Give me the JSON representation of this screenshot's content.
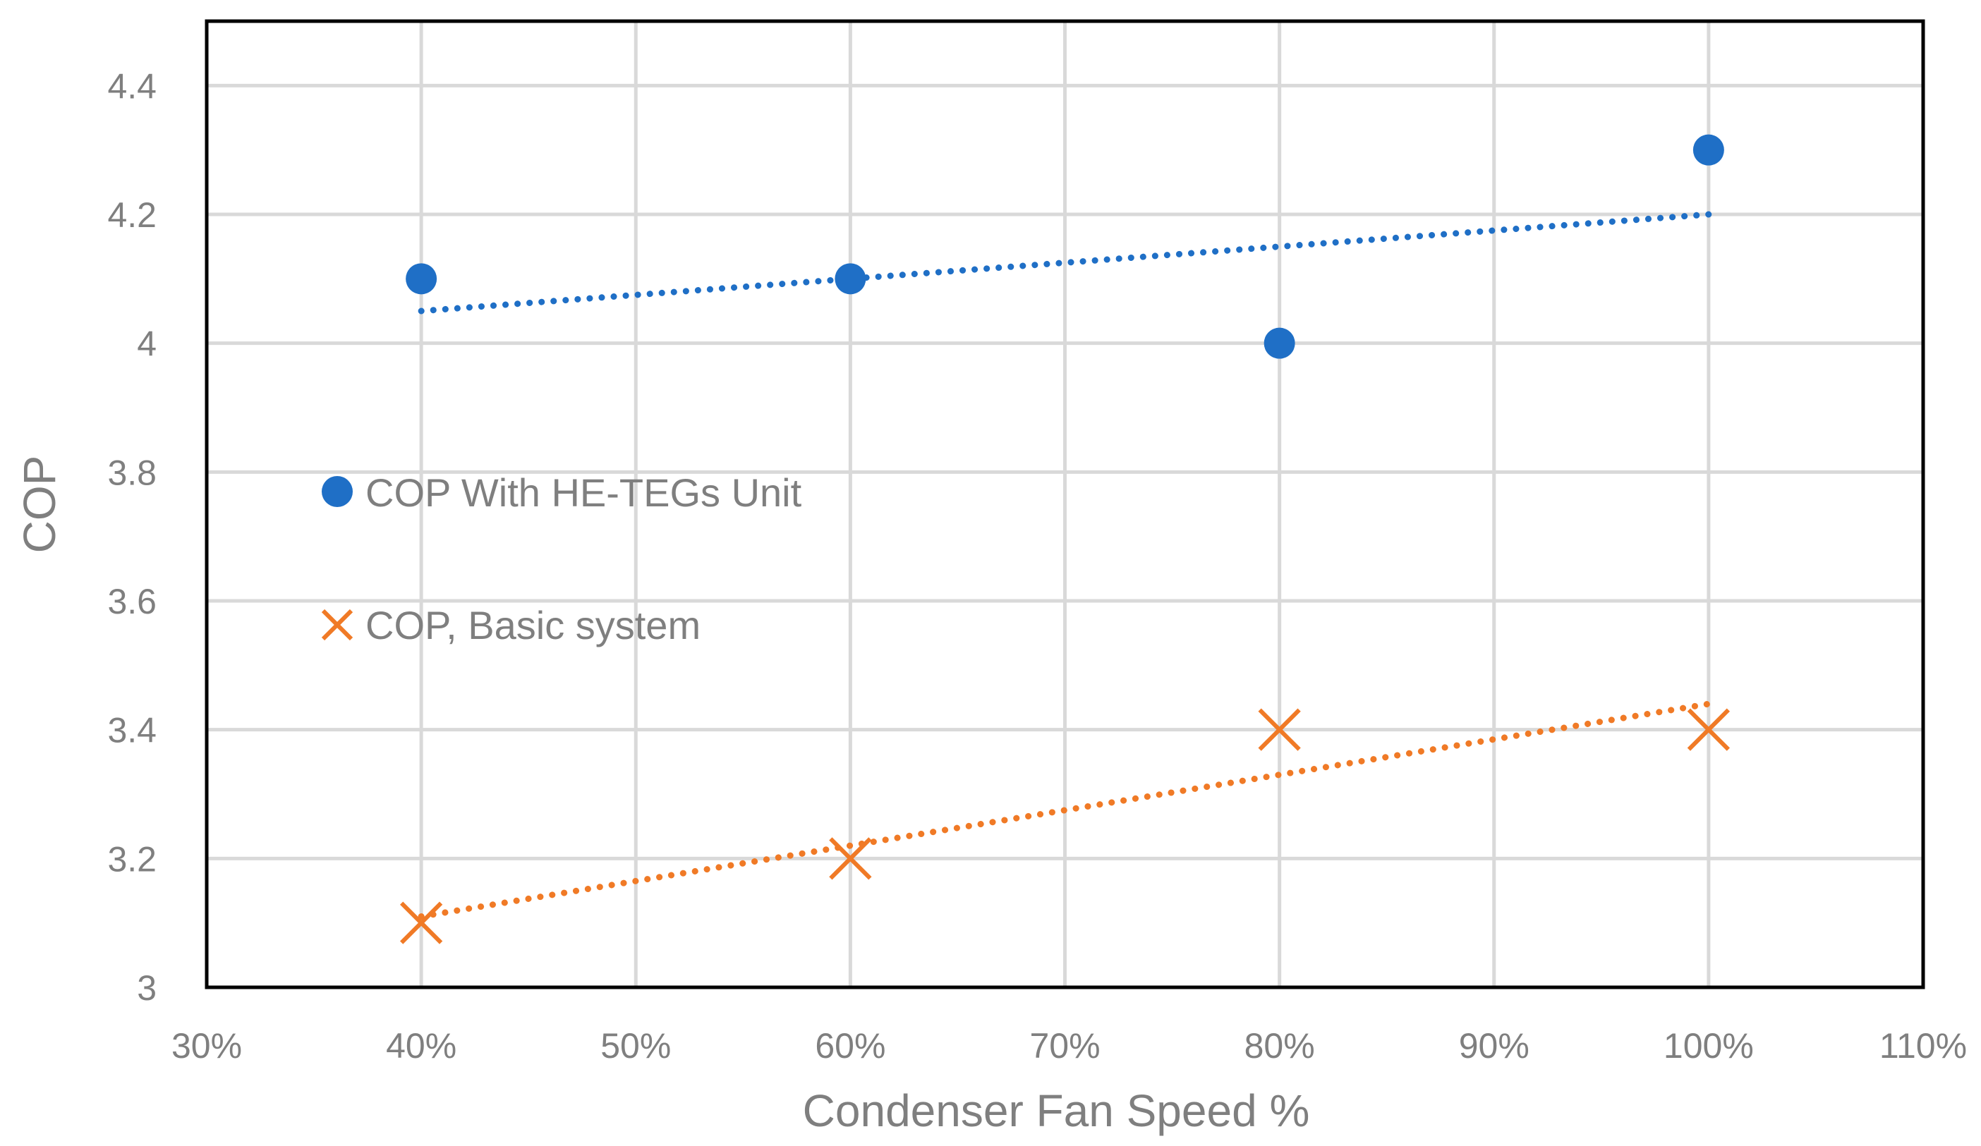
{
  "chart_data": {
    "type": "scatter",
    "title": "",
    "xlabel": "Condenser Fan Speed %",
    "ylabel": "COP",
    "xlim": [
      30,
      110
    ],
    "ylim": [
      3.0,
      4.5
    ],
    "x_ticks": [
      "30%",
      "40%",
      "50%",
      "60%",
      "70%",
      "80%",
      "90%",
      "100%",
      "110%"
    ],
    "y_ticks": [
      "3",
      "3.2",
      "3.4",
      "3.6",
      "3.8",
      "4",
      "4.2",
      "4.4"
    ],
    "grid": true,
    "legend_position": "middle-left inside plot",
    "series": [
      {
        "name": "COP With HE-TEGs Unit",
        "marker": "circle",
        "color": "#1f6fc6",
        "x": [
          40,
          60,
          80,
          100
        ],
        "y": [
          4.1,
          4.1,
          4.0,
          4.3
        ],
        "trendline": {
          "type": "linear",
          "style": "dotted",
          "x": [
            40,
            100
          ],
          "y": [
            4.05,
            4.2
          ]
        }
      },
      {
        "name": "COP, Basic system",
        "marker": "x",
        "color": "#f07a26",
        "x": [
          40,
          60,
          80,
          100
        ],
        "y": [
          3.1,
          3.2,
          3.4,
          3.4
        ],
        "trendline": {
          "type": "linear",
          "style": "dotted",
          "x": [
            40,
            100
          ],
          "y": [
            3.11,
            3.44
          ]
        }
      }
    ]
  }
}
